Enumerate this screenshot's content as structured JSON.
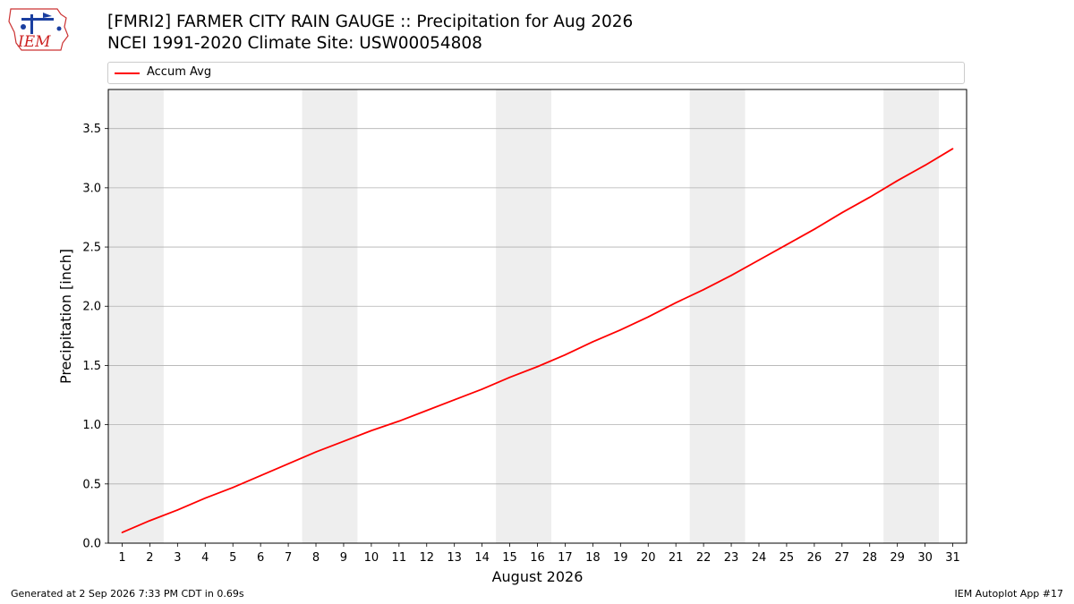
{
  "header": {
    "title_line1": "[FMRI2] FARMER CITY RAIN GAUGE :: Precipitation for Aug 2026",
    "title_line2": "NCEI 1991-2020 Climate Site: USW00054808"
  },
  "logo": {
    "text": "IEM"
  },
  "footer": {
    "generated": "Generated at 2 Sep 2026 7:33 PM CDT in 0.69s",
    "app": "IEM Autoplot App #17"
  },
  "colors": {
    "line": "#ff0000",
    "weekend_band": "#eeeeee",
    "grid": "#b0b0b0"
  },
  "chart_data": {
    "type": "line",
    "xlabel": "August 2026",
    "ylabel": "Precipitation [inch]",
    "xlim": [
      0.5,
      31.5
    ],
    "ylim": [
      0,
      3.83
    ],
    "x": [
      1,
      2,
      3,
      4,
      5,
      6,
      7,
      8,
      9,
      10,
      11,
      12,
      13,
      14,
      15,
      16,
      17,
      18,
      19,
      20,
      21,
      22,
      23,
      24,
      25,
      26,
      27,
      28,
      29,
      30,
      31
    ],
    "xticks": [
      "1",
      "2",
      "3",
      "4",
      "5",
      "6",
      "7",
      "8",
      "9",
      "10",
      "11",
      "12",
      "13",
      "14",
      "15",
      "16",
      "17",
      "18",
      "19",
      "20",
      "21",
      "22",
      "23",
      "24",
      "25",
      "26",
      "27",
      "28",
      "29",
      "30",
      "31"
    ],
    "yticks": [
      "0.0",
      "0.5",
      "1.0",
      "1.5",
      "2.0",
      "2.5",
      "3.0",
      "3.5"
    ],
    "ytick_values": [
      0,
      0.5,
      1.0,
      1.5,
      2.0,
      2.5,
      3.0,
      3.5
    ],
    "grid": "horizontal",
    "legend": "top",
    "weekend_days": [
      1,
      2,
      8,
      9,
      15,
      16,
      22,
      23,
      29,
      30
    ],
    "series": [
      {
        "name": "Accum Avg",
        "values": [
          0.09,
          0.19,
          0.28,
          0.38,
          0.47,
          0.57,
          0.67,
          0.77,
          0.86,
          0.95,
          1.03,
          1.12,
          1.21,
          1.3,
          1.4,
          1.49,
          1.59,
          1.7,
          1.8,
          1.91,
          2.03,
          2.14,
          2.26,
          2.39,
          2.52,
          2.65,
          2.79,
          2.92,
          3.06,
          3.19,
          3.33
        ]
      }
    ]
  }
}
